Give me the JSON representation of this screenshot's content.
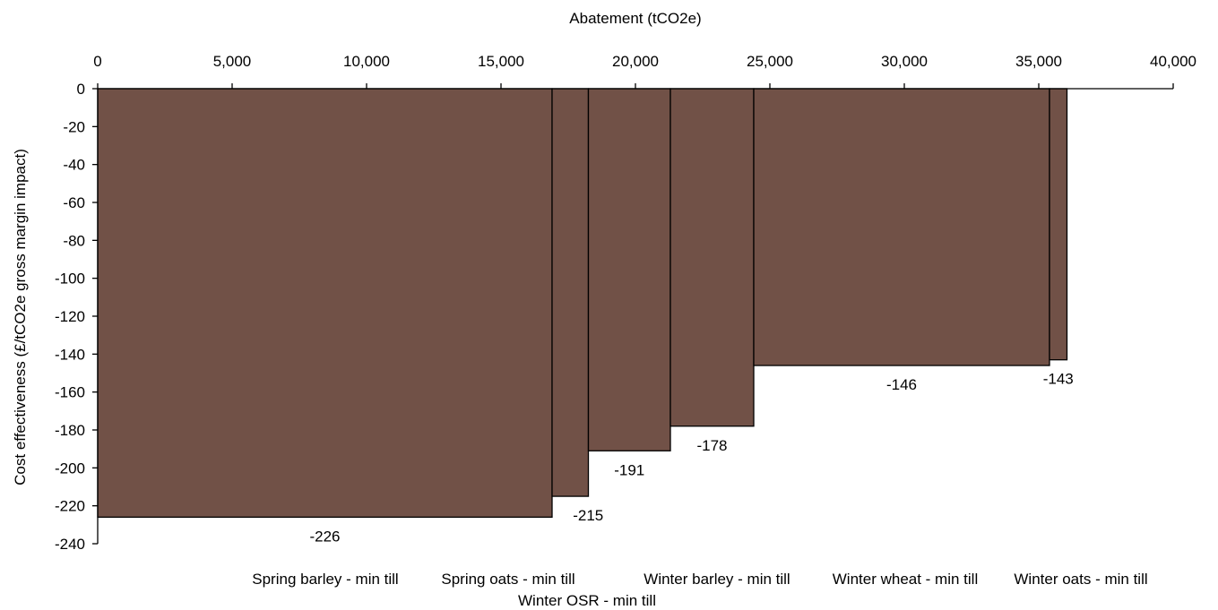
{
  "chart_data": {
    "type": "bar",
    "title": "",
    "xlabel": "Abatement (tCO2e)",
    "ylabel": "Cost effectiveness  (£/tCO2e gross margin impact)",
    "xlim": [
      0,
      40000
    ],
    "ylim": [
      -240,
      0
    ],
    "x_ticks": [
      "0",
      "5,000",
      "10,000",
      "15,000",
      "20,000",
      "25,000",
      "30,000",
      "35,000",
      "40,000"
    ],
    "x_tick_values": [
      0,
      5000,
      10000,
      15000,
      20000,
      25000,
      30000,
      35000,
      40000
    ],
    "y_ticks": [
      "0",
      "-20",
      "-40",
      "-60",
      "-80",
      "-100",
      "-120",
      "-140",
      "-160",
      "-180",
      "-200",
      "-220",
      "-240"
    ],
    "y_tick_values": [
      0,
      -20,
      -40,
      -60,
      -80,
      -100,
      -120,
      -140,
      -160,
      -180,
      -200,
      -220,
      -240
    ],
    "x_axis_position": "top",
    "grid": false,
    "bar_color": "#715147",
    "series": [
      {
        "category": "Spring barley - min till",
        "x_start": 0,
        "x_end": 16900,
        "value": -226,
        "value_label": "-226"
      },
      {
        "category": "Spring oats - min till",
        "x_start": 16900,
        "x_end": 18250,
        "value": -215,
        "value_label": "-215"
      },
      {
        "category": "Winter OSR - min till",
        "x_start": 18250,
        "x_end": 21300,
        "value": -191,
        "value_label": "-191"
      },
      {
        "category": "Winter barley - min till",
        "x_start": 21300,
        "x_end": 24400,
        "value": -178,
        "value_label": "-178"
      },
      {
        "category": "Winter wheat - min till",
        "x_start": 24400,
        "x_end": 35400,
        "value": -146,
        "value_label": "-146"
      },
      {
        "category": "Winter oats - min till",
        "x_start": 35400,
        "x_end": 36050,
        "value": -143,
        "value_label": "-143"
      }
    ]
  }
}
